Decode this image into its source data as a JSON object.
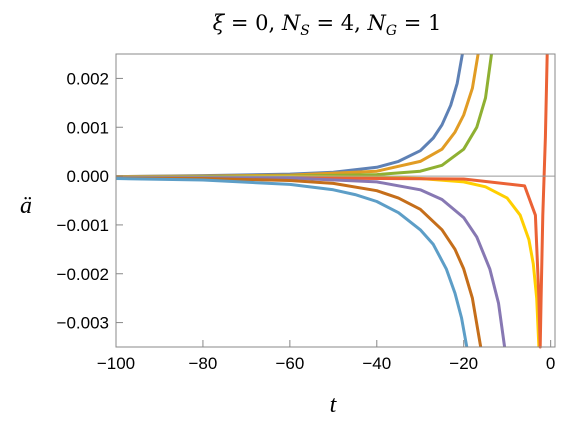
{
  "chart_data": {
    "type": "line",
    "title": "ξ = 0, N_S = 4, N_G = 1",
    "title_parts": {
      "xi": "ξ",
      "xi_val": " = 0, ",
      "ns_sym": "N",
      "ns_sub": "S",
      "ns_val": " = 4, ",
      "ng_sym": "N",
      "ng_sub": "G",
      "ng_val": " = 1"
    },
    "xlabel": "t",
    "ylabel": "ä",
    "xlim": [
      -100,
      1
    ],
    "ylim": [
      -0.0035,
      0.0025
    ],
    "x_ticks": [
      -100,
      -80,
      -60,
      -40,
      -20,
      0
    ],
    "x_tick_labels": [
      "−100",
      "−80",
      "−60",
      "−40",
      "−20",
      "0"
    ],
    "y_ticks": [
      0.002,
      0.001,
      0.0,
      -0.001,
      -0.002,
      -0.003
    ],
    "y_tick_labels": [
      "0.002",
      "0.001",
      "0.000",
      "−0.001",
      "−0.002",
      "−0.003"
    ],
    "grid": false,
    "zero_line": true,
    "series": [
      {
        "color": "#5e81b5",
        "points": [
          [
            -100,
            -1e-05
          ],
          [
            -80,
            1e-05
          ],
          [
            -60,
            4e-05
          ],
          [
            -50,
            8e-05
          ],
          [
            -40,
            0.00018
          ],
          [
            -35,
            0.0003
          ],
          [
            -30,
            0.00052
          ],
          [
            -27,
            0.00078
          ],
          [
            -25,
            0.00105
          ],
          [
            -23,
            0.00145
          ],
          [
            -21.5,
            0.0019
          ],
          [
            -20.3,
            0.0025
          ]
        ]
      },
      {
        "color": "#e19c24",
        "points": [
          [
            -100,
            -1e-05
          ],
          [
            -80,
            0.0
          ],
          [
            -60,
            2e-05
          ],
          [
            -40,
            0.0001
          ],
          [
            -30,
            0.0003
          ],
          [
            -25,
            0.00055
          ],
          [
            -22,
            0.0009
          ],
          [
            -20,
            0.00125
          ],
          [
            -18,
            0.0018
          ],
          [
            -16.7,
            0.0025
          ]
        ]
      },
      {
        "color": "#8fb032",
        "points": [
          [
            -100,
            -2e-05
          ],
          [
            -80,
            -1e-05
          ],
          [
            -60,
            0.0
          ],
          [
            -40,
            3e-05
          ],
          [
            -30,
            0.0001
          ],
          [
            -25,
            0.00022
          ],
          [
            -20,
            0.00055
          ],
          [
            -17,
            0.001
          ],
          [
            -15,
            0.0016
          ],
          [
            -13.6,
            0.0025
          ]
        ]
      },
      {
        "color": "#ffcf00",
        "points": [
          [
            -100,
            -3e-05
          ],
          [
            -80,
            -2e-05
          ],
          [
            -60,
            -1e-05
          ],
          [
            -40,
            -2e-05
          ],
          [
            -30,
            -5e-05
          ],
          [
            -20,
            -0.00012
          ],
          [
            -15,
            -0.00022
          ],
          [
            -10,
            -0.00045
          ],
          [
            -7,
            -0.0008
          ],
          [
            -5,
            -0.0013
          ],
          [
            -4,
            -0.0018
          ],
          [
            -3.2,
            -0.0025
          ],
          [
            -2.7,
            -0.0035
          ]
        ]
      },
      {
        "color": "#eb6235",
        "points": [
          [
            -100,
            -4e-05
          ],
          [
            -60,
            -4e-05
          ],
          [
            -20,
            -6e-05
          ],
          [
            -6,
            -0.0002
          ],
          [
            -3.5,
            -0.0008
          ],
          [
            -2.7,
            -0.0025
          ],
          [
            -2.4,
            -0.0035
          ],
          [
            -2.2,
            -0.0025
          ],
          [
            -1.8,
            -0.0008
          ],
          [
            -1.2,
            0.0008
          ],
          [
            -0.8,
            0.0025
          ]
        ]
      },
      {
        "color": "#8778b3",
        "points": [
          [
            -100,
            -3e-05
          ],
          [
            -80,
            -3e-05
          ],
          [
            -60,
            -4e-05
          ],
          [
            -40,
            -0.00012
          ],
          [
            -30,
            -0.00028
          ],
          [
            -25,
            -0.00048
          ],
          [
            -20,
            -0.00085
          ],
          [
            -17,
            -0.00125
          ],
          [
            -14,
            -0.0019
          ],
          [
            -12,
            -0.0026
          ],
          [
            -10.6,
            -0.0035
          ]
        ]
      },
      {
        "color": "#c56e1a",
        "points": [
          [
            -100,
            -4e-05
          ],
          [
            -80,
            -5e-05
          ],
          [
            -60,
            -9e-05
          ],
          [
            -50,
            -0.00015
          ],
          [
            -40,
            -0.0003
          ],
          [
            -35,
            -0.00045
          ],
          [
            -30,
            -0.00068
          ],
          [
            -25,
            -0.0011
          ],
          [
            -22,
            -0.0015
          ],
          [
            -20,
            -0.0019
          ],
          [
            -18,
            -0.0025
          ],
          [
            -16.1,
            -0.0035
          ]
        ]
      },
      {
        "color": "#5d9ec7",
        "points": [
          [
            -100,
            -5e-05
          ],
          [
            -80,
            -8e-05
          ],
          [
            -60,
            -0.00017
          ],
          [
            -50,
            -0.00028
          ],
          [
            -45,
            -0.00038
          ],
          [
            -40,
            -0.00052
          ],
          [
            -35,
            -0.00075
          ],
          [
            -30,
            -0.0011
          ],
          [
            -27,
            -0.0014
          ],
          [
            -24,
            -0.0019
          ],
          [
            -22,
            -0.0024
          ],
          [
            -20.5,
            -0.0029
          ],
          [
            -19.3,
            -0.0035
          ]
        ]
      }
    ]
  }
}
